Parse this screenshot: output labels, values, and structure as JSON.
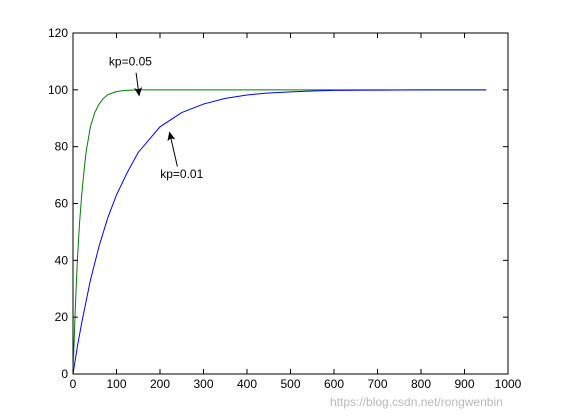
{
  "chart_data": {
    "type": "line",
    "title": "",
    "xlabel": "",
    "ylabel": "",
    "xlim": [
      0,
      1000
    ],
    "ylim": [
      0,
      120
    ],
    "xticks": [
      0,
      100,
      200,
      300,
      400,
      500,
      600,
      700,
      800,
      900,
      1000
    ],
    "yticks": [
      0,
      20,
      40,
      60,
      80,
      100,
      120
    ],
    "grid": false,
    "series": [
      {
        "color": "#007f00",
        "x": [
          0,
          5,
          10,
          15,
          20,
          25,
          30,
          40,
          50,
          60,
          70,
          80,
          100,
          120,
          150,
          200,
          300,
          400,
          500,
          600,
          700,
          800,
          900,
          950
        ],
        "y": [
          0,
          22,
          40,
          53,
          63,
          71,
          78,
          87,
          92,
          95,
          97,
          98.3,
          99.4,
          99.8,
          100,
          100,
          100,
          100,
          100,
          100,
          100,
          100,
          100,
          100
        ]
      },
      {
        "color": "#0000ff",
        "x": [
          0,
          10,
          20,
          40,
          60,
          80,
          100,
          125,
          150,
          200,
          250,
          300,
          350,
          400,
          450,
          500,
          550,
          600,
          700,
          800,
          900,
          950
        ],
        "y": [
          0,
          9.6,
          18,
          33,
          45,
          55,
          63,
          71,
          78,
          87,
          92,
          95,
          97,
          98.2,
          98.9,
          99.3,
          99.6,
          99.8,
          99.9,
          100,
          100,
          100
        ]
      }
    ],
    "annotations": [
      {
        "text": "kp=0.05",
        "text_at": [
          132,
          108.5
        ],
        "arrow_from": [
          145,
          106
        ],
        "arrow_to": [
          152,
          98
        ]
      },
      {
        "text": "kp=0.01",
        "text_at": [
          250,
          69
        ],
        "arrow_from": [
          240,
          73
        ],
        "arrow_to": [
          222,
          85
        ]
      }
    ]
  },
  "watermark": "https://blog.csdn.net/rongwenbin"
}
